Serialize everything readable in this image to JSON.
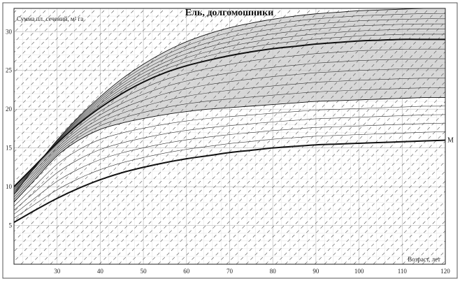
{
  "chart_data": {
    "type": "line",
    "title": "Ель, долгомошники",
    "ylabel": "Сумма пл. сечений, м² га",
    "xlabel": "Возраст, лет",
    "xlim": [
      20,
      120
    ],
    "ylim": [
      0,
      33
    ],
    "x_ticks": [
      30,
      40,
      50,
      60,
      70,
      80,
      90,
      100,
      110,
      120
    ],
    "y_ticks": [
      5,
      10,
      15,
      20,
      25,
      30
    ],
    "grid": true,
    "x": [
      20,
      25,
      30,
      35,
      40,
      45,
      50,
      55,
      60,
      65,
      70,
      75,
      80,
      85,
      90,
      95,
      100,
      105,
      110,
      115,
      120
    ],
    "series": [
      {
        "name": "",
        "role": "upper-envelope",
        "values": [
          9.0,
          12.6,
          16.0,
          19.0,
          21.6,
          23.9,
          25.8,
          27.4,
          28.7,
          29.7,
          30.5,
          31.1,
          31.6,
          32.0,
          32.3,
          32.5,
          32.7,
          32.8,
          32.9,
          33.0,
          33.0
        ]
      },
      {
        "name": "",
        "role": "mean",
        "values": [
          10.0,
          12.8,
          15.6,
          18.1,
          20.2,
          22.0,
          23.5,
          24.7,
          25.6,
          26.3,
          26.9,
          27.4,
          27.8,
          28.1,
          28.4,
          28.6,
          28.8,
          28.9,
          29.0,
          29.0,
          29.0
        ]
      },
      {
        "name": "",
        "role": "shaded-lower-boundary",
        "values": [
          8.0,
          11.0,
          14.0,
          16.0,
          17.4,
          18.2,
          18.8,
          19.3,
          19.7,
          20.0,
          20.2,
          20.4,
          20.6,
          20.8,
          21.0,
          21.1,
          21.2,
          21.3,
          21.4,
          21.5,
          21.5
        ]
      },
      {
        "name": "М",
        "role": "lower-curve",
        "values": [
          5.4,
          7.0,
          8.5,
          9.8,
          10.9,
          11.8,
          12.5,
          13.1,
          13.6,
          14.0,
          14.4,
          14.7,
          15.0,
          15.2,
          15.4,
          15.5,
          15.6,
          15.7,
          15.8,
          15.9,
          16.0
        ]
      }
    ],
    "series_end_label": "М",
    "shaded_band": "between upper-envelope and shaded-lower-boundary"
  }
}
